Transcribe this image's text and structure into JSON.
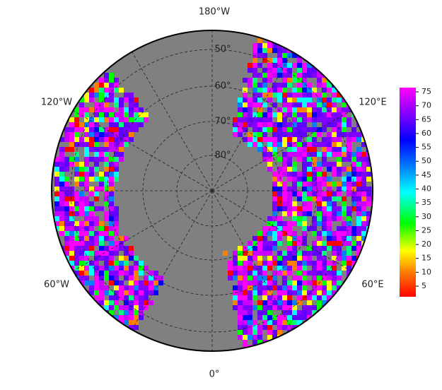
{
  "map": {
    "longitude_labels": [
      "180°W",
      "120°W",
      "120°E",
      "60°W",
      "60°E",
      "0°"
    ],
    "latitude_labels": [
      "50°",
      "60°",
      "70°",
      "80°"
    ],
    "colorbar": {
      "ticks": [
        5,
        10,
        15,
        20,
        25,
        30,
        35,
        40,
        45,
        50,
        55,
        60,
        65,
        70,
        75
      ]
    }
  }
}
